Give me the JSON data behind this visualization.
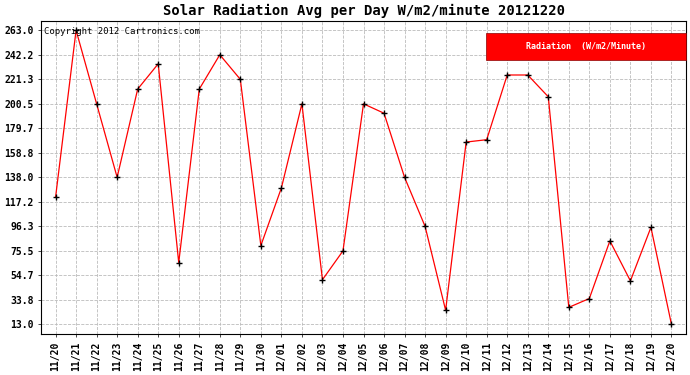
{
  "title": "Solar Radiation Avg per Day W/m2/minute 20121220",
  "copyright_text": "Copyright 2012 Cartronics.com",
  "legend_label": "Radiation  (W/m2/Minute)",
  "dates": [
    "11/20",
    "11/21",
    "11/22",
    "11/23",
    "11/24",
    "11/25",
    "11/26",
    "11/27",
    "11/28",
    "11/29",
    "11/30",
    "12/01",
    "12/02",
    "12/03",
    "12/04",
    "12/05",
    "12/06",
    "12/07",
    "12/08",
    "12/09",
    "12/10",
    "12/11",
    "12/12",
    "12/13",
    "12/14",
    "12/15",
    "12/16",
    "12/17",
    "12/18",
    "12/19",
    "12/20"
  ],
  "values": [
    121.0,
    263.0,
    200.5,
    138.0,
    213.0,
    234.5,
    65.5,
    213.0,
    242.2,
    221.3,
    80.0,
    129.0,
    200.5,
    51.0,
    75.5,
    200.5,
    192.5,
    138.0,
    96.3,
    25.0,
    168.0,
    170.0,
    225.0,
    225.0,
    206.5,
    27.5,
    35.0,
    84.0,
    50.0,
    95.5,
    13.0
  ],
  "line_color": "red",
  "marker_color": "black",
  "bg_color": "white",
  "grid_color": "#bbbbbb",
  "yticks": [
    13.0,
    33.8,
    54.7,
    75.5,
    96.3,
    117.2,
    138.0,
    158.8,
    179.7,
    200.5,
    221.3,
    242.2,
    263.0
  ],
  "ymin": 13.0,
  "ymax": 263.0,
  "legend_bg": "red",
  "legend_text_color": "white",
  "title_fontsize": 10,
  "tick_fontsize": 7,
  "copyright_fontsize": 6.5
}
